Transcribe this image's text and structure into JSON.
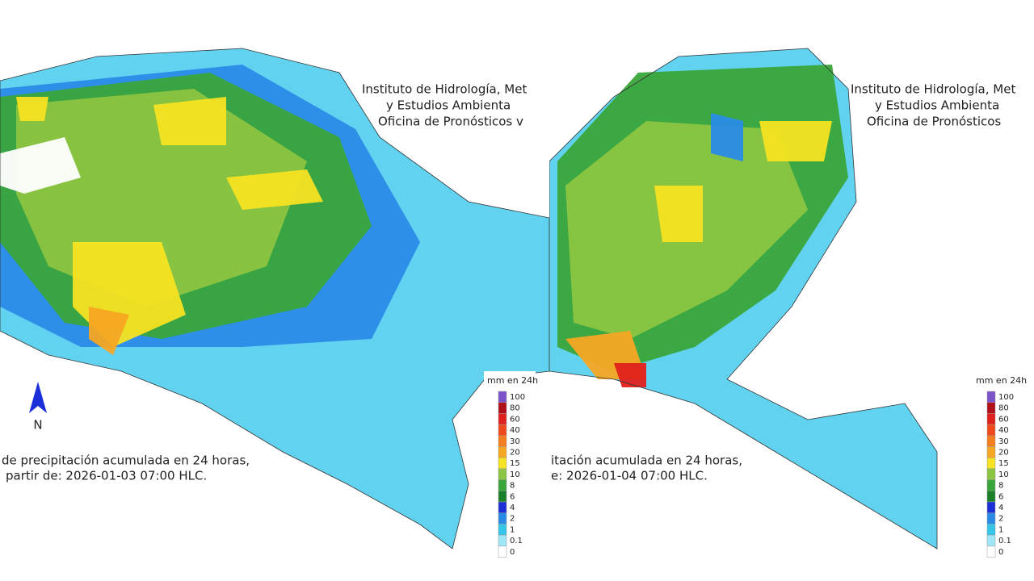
{
  "panels": [
    {
      "header": [
        "Instituto de Hidrología, Met",
        "y Estudios Ambienta",
        "Oficina de Pronósticos v"
      ],
      "north": "N",
      "caption": [
        "de precipitación acumulada en 24 horas,",
        "partir de: 2026-01-03 07:00 HLC."
      ],
      "legend_title": "mm en 24h"
    },
    {
      "header": [
        "Instituto de Hidrología, Met",
        "y Estudios Ambienta",
        "Oficina de Pronósticos"
      ],
      "caption": [
        "itación acumulada en 24 horas,",
        "e: 2026-01-04 07:00 HLC."
      ],
      "legend_title": "mm en 24h"
    }
  ],
  "legend": [
    {
      "label": "100",
      "color": "#7b52c7"
    },
    {
      "label": "80",
      "color": "#b0101a"
    },
    {
      "label": "60",
      "color": "#e0201c"
    },
    {
      "label": "40",
      "color": "#f04a1c"
    },
    {
      "label": "30",
      "color": "#f47d20"
    },
    {
      "label": "20",
      "color": "#f5a623"
    },
    {
      "label": "15",
      "color": "#f6e322"
    },
    {
      "label": "10",
      "color": "#8bc541"
    },
    {
      "label": "8",
      "color": "#3aa53a"
    },
    {
      "label": "6",
      "color": "#1b7f2a"
    },
    {
      "label": "4",
      "color": "#1c2fd6"
    },
    {
      "label": "2",
      "color": "#2a8be6"
    },
    {
      "label": "1",
      "color": "#35c6ea"
    },
    {
      "label": "0.1",
      "color": "#9fe6f6"
    },
    {
      "label": "0",
      "color": "#ffffff"
    }
  ]
}
